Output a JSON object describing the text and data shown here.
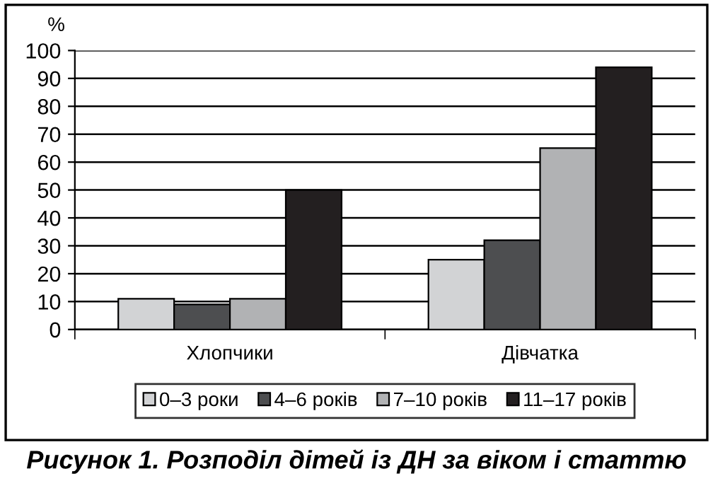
{
  "chart_data": {
    "type": "bar",
    "title": "Рисунок 1. Розподіл дітей із ДН за віком і статтю",
    "ylabel": "%",
    "categories": [
      "Хлопчики",
      "Дівчатка"
    ],
    "series": [
      {
        "name": "0–3 роки",
        "color": "#d2d3d5",
        "values": [
          11,
          25
        ]
      },
      {
        "name": "4–6 років",
        "color": "#4d4e50",
        "values": [
          9,
          32
        ]
      },
      {
        "name": "7–10 років",
        "color": "#b1b2b4",
        "values": [
          11,
          65
        ]
      },
      {
        "name": "11–17 років",
        "color": "#231f20",
        "values": [
          50,
          94
        ]
      }
    ],
    "ylim": [
      0,
      100
    ],
    "yticks": [
      0,
      10,
      20,
      30,
      40,
      50,
      60,
      70,
      80,
      90,
      100
    ],
    "grid": "y",
    "legend": "bottom"
  }
}
